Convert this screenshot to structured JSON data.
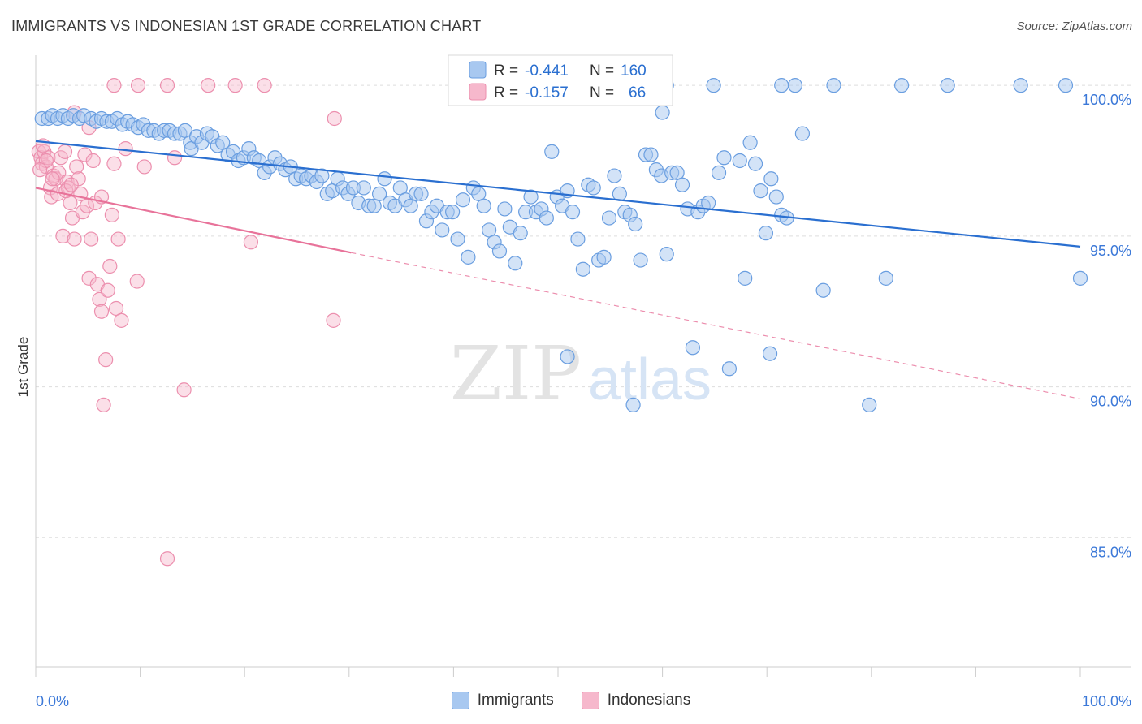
{
  "header": {
    "title": "IMMIGRANTS VS INDONESIAN 1ST GRADE CORRELATION CHART",
    "source": "Source: ZipAtlas.com"
  },
  "watermark": {
    "zip": "ZIP",
    "atlas": "atlas"
  },
  "colors": {
    "immigrants_fill": "#a8c8f0",
    "immigrants_stroke": "#6a9ee0",
    "immigrants_line": "#2a6fd0",
    "indonesians_fill": "#f6b8cc",
    "indonesians_stroke": "#ec8fae",
    "indonesians_line": "#e8739a",
    "tick_label": "#3b78d8",
    "grid": "#dddddd"
  },
  "stats_legend": [
    {
      "r_label": "R = ",
      "r_value": "-0.441",
      "n_label": "N = ",
      "n_value": "160"
    },
    {
      "r_label": "R = ",
      "r_value": "-0.157",
      "n_label": "N = ",
      "n_value": "66"
    }
  ],
  "chart_data": {
    "type": "scatter",
    "title": "IMMIGRANTS VS INDONESIAN 1ST GRADE CORRELATION CHART",
    "xlabel": "",
    "ylabel": "1st Grade",
    "xlim": [
      0,
      100
    ],
    "ylim": [
      80.7,
      101.0
    ],
    "x_tick_labels": [
      "0.0%",
      "100.0%"
    ],
    "y_ticks": [
      {
        "value": 100.0,
        "label": "100.0%"
      },
      {
        "value": 95.0,
        "label": "95.0%"
      },
      {
        "value": 90.0,
        "label": "90.0%"
      },
      {
        "value": 85.0,
        "label": "85.0%"
      }
    ],
    "grid": true,
    "legend_position": "bottom",
    "series": [
      {
        "name": "Immigrants",
        "r": -0.441,
        "n": 160,
        "trend": {
          "x": [
            0,
            100
          ],
          "y": [
            98.15,
            94.65
          ],
          "style": "solid"
        },
        "points": [
          [
            0.6,
            98.9
          ],
          [
            1.2,
            98.9
          ],
          [
            1.6,
            99.0
          ],
          [
            2.1,
            98.9
          ],
          [
            2.6,
            99.0
          ],
          [
            3.1,
            98.9
          ],
          [
            3.6,
            99.0
          ],
          [
            4.2,
            98.9
          ],
          [
            4.6,
            99.0
          ],
          [
            5.3,
            98.9
          ],
          [
            5.8,
            98.8
          ],
          [
            6.3,
            98.9
          ],
          [
            6.8,
            98.8
          ],
          [
            7.3,
            98.8
          ],
          [
            7.8,
            98.9
          ],
          [
            8.3,
            98.7
          ],
          [
            8.8,
            98.8
          ],
          [
            9.3,
            98.7
          ],
          [
            9.8,
            98.6
          ],
          [
            10.3,
            98.7
          ],
          [
            10.8,
            98.5
          ],
          [
            11.3,
            98.5
          ],
          [
            11.8,
            98.4
          ],
          [
            12.3,
            98.5
          ],
          [
            12.8,
            98.5
          ],
          [
            13.3,
            98.4
          ],
          [
            13.8,
            98.4
          ],
          [
            14.3,
            98.5
          ],
          [
            14.8,
            98.1
          ],
          [
            14.9,
            97.9
          ],
          [
            15.4,
            98.3
          ],
          [
            15.9,
            98.1
          ],
          [
            16.4,
            98.4
          ],
          [
            16.9,
            98.3
          ],
          [
            17.4,
            98.0
          ],
          [
            17.9,
            98.1
          ],
          [
            18.4,
            97.7
          ],
          [
            18.9,
            97.8
          ],
          [
            19.4,
            97.5
          ],
          [
            19.9,
            97.6
          ],
          [
            20.4,
            97.9
          ],
          [
            20.9,
            97.6
          ],
          [
            21.4,
            97.5
          ],
          [
            21.9,
            97.1
          ],
          [
            22.4,
            97.3
          ],
          [
            22.9,
            97.6
          ],
          [
            23.4,
            97.4
          ],
          [
            23.9,
            97.2
          ],
          [
            24.4,
            97.3
          ],
          [
            24.9,
            96.9
          ],
          [
            25.4,
            97.0
          ],
          [
            25.9,
            96.9
          ],
          [
            26.4,
            97.0
          ],
          [
            26.9,
            96.8
          ],
          [
            27.4,
            97.0
          ],
          [
            27.9,
            96.4
          ],
          [
            28.4,
            96.5
          ],
          [
            28.9,
            96.9
          ],
          [
            29.4,
            96.6
          ],
          [
            29.9,
            96.4
          ],
          [
            30.4,
            96.6
          ],
          [
            30.9,
            96.1
          ],
          [
            31.4,
            96.6
          ],
          [
            31.9,
            96.0
          ],
          [
            32.4,
            96.0
          ],
          [
            32.9,
            96.4
          ],
          [
            33.4,
            96.9
          ],
          [
            33.9,
            96.1
          ],
          [
            34.4,
            96.0
          ],
          [
            34.9,
            96.6
          ],
          [
            35.4,
            96.2
          ],
          [
            35.9,
            96.0
          ],
          [
            36.4,
            96.4
          ],
          [
            36.9,
            96.4
          ],
          [
            37.4,
            95.5
          ],
          [
            37.9,
            95.8
          ],
          [
            38.4,
            96.0
          ],
          [
            38.9,
            95.2
          ],
          [
            39.4,
            95.8
          ],
          [
            39.9,
            95.8
          ],
          [
            40.4,
            94.9
          ],
          [
            40.9,
            96.2
          ],
          [
            41.4,
            94.3
          ],
          [
            41.9,
            96.6
          ],
          [
            42.4,
            96.4
          ],
          [
            42.9,
            96.0
          ],
          [
            43.4,
            95.2
          ],
          [
            43.9,
            94.8
          ],
          [
            44.4,
            94.5
          ],
          [
            44.9,
            95.9
          ],
          [
            45.4,
            95.3
          ],
          [
            45.9,
            94.1
          ],
          [
            46.4,
            95.1
          ],
          [
            46.9,
            95.8
          ],
          [
            47.4,
            96.3
          ],
          [
            47.9,
            95.8
          ],
          [
            48.4,
            95.9
          ],
          [
            48.9,
            95.6
          ],
          [
            49.4,
            97.8
          ],
          [
            49.9,
            96.3
          ],
          [
            50.4,
            96.0
          ],
          [
            50.9,
            96.5
          ],
          [
            51.4,
            95.8
          ],
          [
            51.9,
            94.9
          ],
          [
            52.4,
            93.9
          ],
          [
            52.9,
            96.7
          ],
          [
            53.4,
            96.6
          ],
          [
            53.9,
            94.2
          ],
          [
            54.4,
            94.3
          ],
          [
            54.9,
            95.6
          ],
          [
            55.4,
            97.0
          ],
          [
            55.9,
            96.4
          ],
          [
            56.4,
            95.8
          ],
          [
            56.9,
            95.7
          ],
          [
            57.4,
            95.4
          ],
          [
            57.9,
            94.2
          ],
          [
            58.4,
            97.7
          ],
          [
            58.9,
            97.7
          ],
          [
            59.4,
            97.2
          ],
          [
            59.9,
            97.0
          ],
          [
            60.4,
            94.4
          ],
          [
            60.9,
            97.1
          ],
          [
            61.4,
            97.1
          ],
          [
            61.9,
            96.7
          ],
          [
            62.4,
            95.9
          ],
          [
            62.9,
            91.3
          ],
          [
            63.4,
            95.8
          ],
          [
            63.9,
            96.0
          ],
          [
            64.4,
            96.1
          ],
          [
            65.4,
            97.1
          ],
          [
            65.9,
            97.6
          ],
          [
            66.4,
            90.6
          ],
          [
            67.4,
            97.5
          ],
          [
            67.9,
            93.6
          ],
          [
            68.4,
            98.1
          ],
          [
            68.9,
            97.4
          ],
          [
            69.4,
            96.5
          ],
          [
            69.9,
            95.1
          ],
          [
            70.4,
            96.9
          ],
          [
            70.9,
            96.3
          ],
          [
            71.4,
            95.7
          ],
          [
            71.9,
            95.6
          ],
          [
            73.4,
            98.4
          ],
          [
            75.4,
            93.2
          ],
          [
            81.4,
            93.6
          ],
          [
            60.4,
            100.0
          ],
          [
            64.9,
            100.0
          ],
          [
            71.4,
            100.0
          ],
          [
            72.7,
            100.0
          ],
          [
            76.4,
            100.0
          ],
          [
            82.9,
            100.0
          ],
          [
            87.3,
            100.0
          ],
          [
            94.3,
            100.0
          ],
          [
            98.6,
            100.0
          ],
          [
            50.9,
            91.0
          ],
          [
            57.2,
            89.4
          ],
          [
            79.8,
            89.4
          ],
          [
            70.3,
            91.1
          ],
          [
            100.0,
            93.6
          ],
          [
            60.0,
            99.1
          ]
        ]
      },
      {
        "name": "Indonesians",
        "r": -0.157,
        "n": 66,
        "trend": {
          "x": [
            0,
            30.2
          ],
          "y": [
            96.6,
            94.45
          ],
          "style": "solid",
          "extension": {
            "x": [
              30.2,
              100
            ],
            "y": [
              94.45,
              89.6
            ],
            "style": "dashed"
          }
        },
        "points": [
          [
            0.3,
            97.8
          ],
          [
            0.5,
            97.6
          ],
          [
            0.6,
            97.4
          ],
          [
            0.8,
            97.8
          ],
          [
            1.0,
            97.3
          ],
          [
            1.2,
            97.6
          ],
          [
            1.4,
            96.6
          ],
          [
            1.5,
            96.3
          ],
          [
            1.7,
            97.0
          ],
          [
            1.9,
            96.9
          ],
          [
            2.1,
            96.4
          ],
          [
            2.2,
            97.1
          ],
          [
            2.4,
            97.6
          ],
          [
            2.6,
            95.0
          ],
          [
            2.8,
            97.8
          ],
          [
            3.0,
            96.8
          ],
          [
            3.1,
            96.6
          ],
          [
            3.3,
            96.1
          ],
          [
            3.5,
            95.6
          ],
          [
            3.7,
            94.9
          ],
          [
            3.9,
            97.3
          ],
          [
            4.1,
            96.9
          ],
          [
            4.3,
            96.4
          ],
          [
            4.5,
            95.8
          ],
          [
            4.7,
            97.7
          ],
          [
            4.9,
            96.0
          ],
          [
            5.1,
            93.6
          ],
          [
            5.3,
            94.9
          ],
          [
            5.5,
            97.5
          ],
          [
            5.7,
            96.1
          ],
          [
            5.9,
            93.4
          ],
          [
            6.1,
            92.9
          ],
          [
            6.3,
            92.5
          ],
          [
            6.5,
            89.4
          ],
          [
            6.7,
            90.9
          ],
          [
            6.9,
            93.2
          ],
          [
            7.1,
            94.0
          ],
          [
            7.3,
            95.7
          ],
          [
            7.5,
            97.4
          ],
          [
            7.7,
            92.6
          ],
          [
            7.9,
            94.9
          ],
          [
            8.2,
            92.2
          ],
          [
            8.6,
            97.9
          ],
          [
            9.7,
            93.5
          ],
          [
            10.4,
            97.3
          ],
          [
            13.3,
            97.6
          ],
          [
            14.2,
            89.9
          ],
          [
            16.5,
            100.0
          ],
          [
            7.5,
            100.0
          ],
          [
            9.8,
            100.0
          ],
          [
            12.6,
            100.0
          ],
          [
            19.1,
            100.0
          ],
          [
            21.9,
            100.0
          ],
          [
            28.6,
            98.9
          ],
          [
            28.5,
            92.2
          ],
          [
            20.6,
            94.8
          ],
          [
            12.6,
            84.3
          ],
          [
            3.7,
            99.1
          ],
          [
            5.1,
            98.6
          ],
          [
            2.9,
            96.5
          ],
          [
            1.0,
            97.5
          ],
          [
            1.6,
            96.9
          ],
          [
            0.7,
            98.0
          ],
          [
            3.4,
            96.7
          ],
          [
            6.3,
            96.3
          ],
          [
            0.4,
            97.2
          ]
        ]
      }
    ]
  },
  "bottom_legend": [
    {
      "label": "Immigrants"
    },
    {
      "label": "Indonesians"
    }
  ]
}
